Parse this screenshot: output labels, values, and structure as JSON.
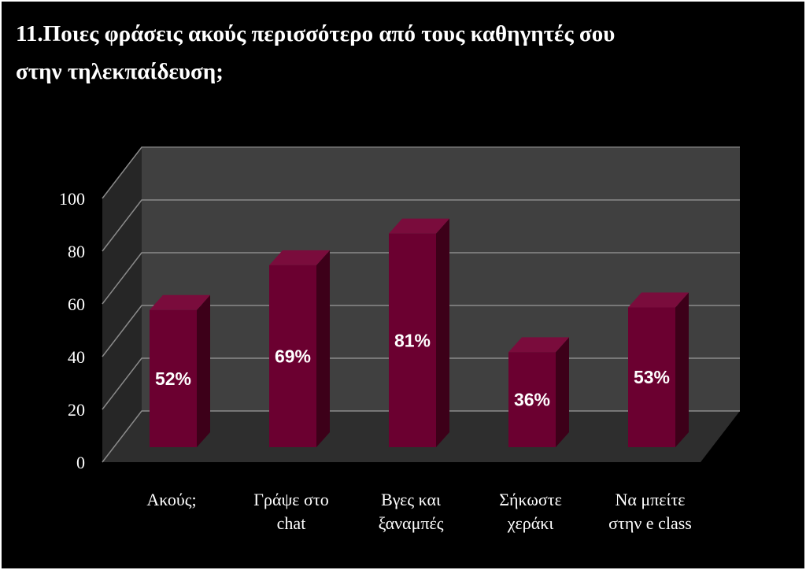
{
  "chart_data": {
    "type": "bar",
    "title": "11.Ποιες φράσεις ακούς περισσότερο από τους καθηγητές σου\nστην τηλεκπαίδευση;",
    "categories": [
      "Ακούς;",
      "Γράψε στο\nchat",
      "Βγες και\nξαναμπές",
      "Σήκωστε\nχεράκι",
      "Να μπείτε\nστην e class"
    ],
    "values": [
      52,
      69,
      81,
      36,
      53
    ],
    "value_labels": [
      "52%",
      "69%",
      "81%",
      "36%",
      "53%"
    ],
    "color": "#6b0030",
    "ylim": [
      0,
      100
    ],
    "yticks": [
      0,
      20,
      40,
      60,
      80,
      100
    ],
    "grid": true
  }
}
